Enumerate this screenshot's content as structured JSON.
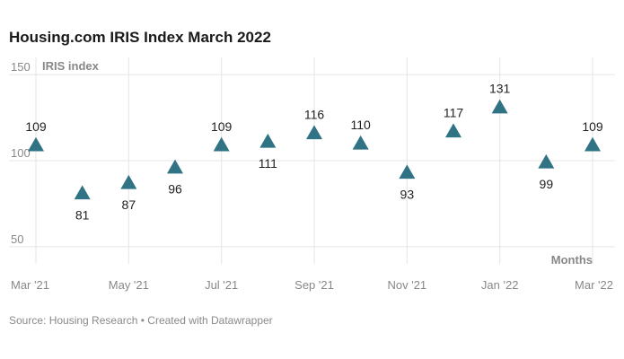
{
  "title": "Housing.com IRIS Index March 2022",
  "source": "Source: Housing Research • Created with Datawrapper",
  "colors": {
    "marker": "#2f7384",
    "grid": "#e5e5e5",
    "axis_text": "#888888",
    "label_text": "#222222"
  },
  "chart_data": {
    "type": "scatter",
    "marker": "triangle",
    "title": "Housing.com IRIS Index March 2022",
    "xlabel": "Months",
    "ylabel": "IRIS index",
    "ylim": [
      40,
      160
    ],
    "yticks": [
      50,
      100,
      150
    ],
    "x": [
      "Mar '21",
      "Apr '21",
      "May '21",
      "Jun '21",
      "Jul '21",
      "Aug '21",
      "Sep '21",
      "Oct '21",
      "Nov '21",
      "Dec '21",
      "Jan '22",
      "Feb '22",
      "Mar '22"
    ],
    "xtick_labels": [
      "Mar '21",
      "",
      "May '21",
      "",
      "Jul '21",
      "",
      "Sep '21",
      "",
      "Nov '21",
      "",
      "Jan '22",
      "",
      "Mar '22"
    ],
    "values": [
      109,
      81,
      87,
      96,
      109,
      111,
      116,
      110,
      93,
      117,
      131,
      99,
      109
    ],
    "label_position": [
      "above",
      "below",
      "below",
      "below",
      "above",
      "below",
      "above",
      "above",
      "below",
      "above",
      "above",
      "below",
      "above"
    ],
    "grid": true
  }
}
